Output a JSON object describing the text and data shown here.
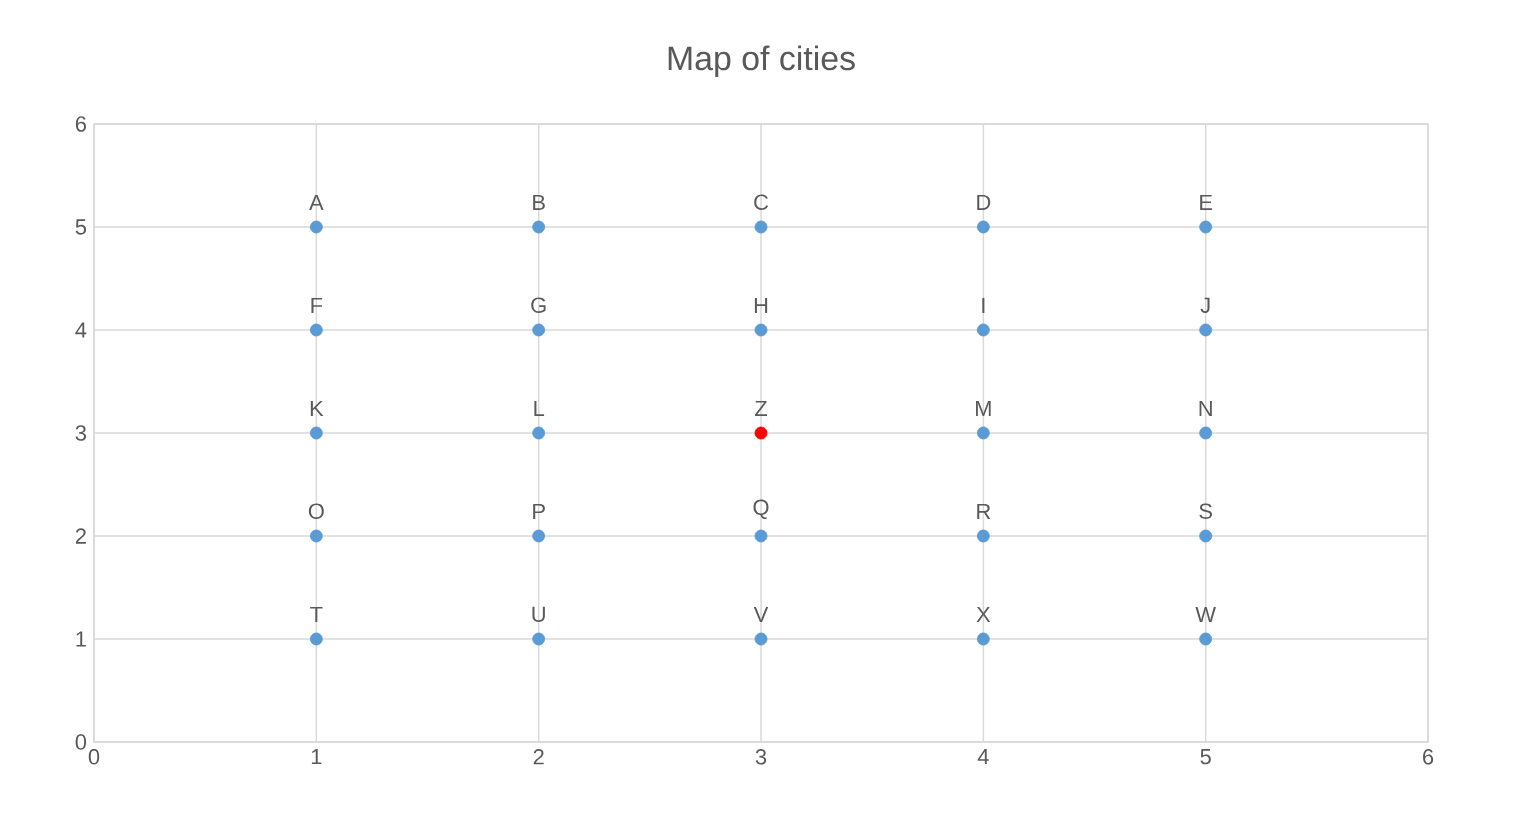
{
  "chart_data": {
    "type": "scatter",
    "title": "Map of cities",
    "series": [
      {
        "color": "#5b9bd5",
        "x": [
          1,
          2,
          3,
          4,
          5,
          1,
          2,
          3,
          4,
          5,
          1,
          2,
          4,
          5,
          1,
          2,
          3,
          4,
          5,
          1,
          2,
          3,
          4,
          5
        ],
        "values": [
          5,
          5,
          5,
          5,
          5,
          4,
          4,
          4,
          4,
          4,
          3,
          3,
          3,
          3,
          2,
          2,
          2,
          2,
          2,
          1,
          1,
          1,
          1,
          1
        ]
      },
      {
        "color": "#ff0000",
        "x": [
          3
        ],
        "values": [
          3
        ]
      }
    ],
    "annotations": [
      {
        "text": "A",
        "x": 1,
        "y": 5
      },
      {
        "text": "B",
        "x": 2,
        "y": 5
      },
      {
        "text": "C",
        "x": 3,
        "y": 5
      },
      {
        "text": "D",
        "x": 4,
        "y": 5
      },
      {
        "text": "E",
        "x": 5,
        "y": 5
      },
      {
        "text": "F",
        "x": 1,
        "y": 4
      },
      {
        "text": "G",
        "x": 2,
        "y": 4
      },
      {
        "text": "H",
        "x": 3,
        "y": 4
      },
      {
        "text": "I",
        "x": 4,
        "y": 4
      },
      {
        "text": "J",
        "x": 5,
        "y": 4
      },
      {
        "text": "K",
        "x": 1,
        "y": 3
      },
      {
        "text": "L",
        "x": 2,
        "y": 3
      },
      {
        "text": "Z",
        "x": 3,
        "y": 3
      },
      {
        "text": "M",
        "x": 4,
        "y": 3
      },
      {
        "text": "N",
        "x": 5,
        "y": 3
      },
      {
        "text": "O",
        "x": 1,
        "y": 2
      },
      {
        "text": "P",
        "x": 2,
        "y": 2
      },
      {
        "text": "Q",
        "x": 3,
        "y": 2
      },
      {
        "text": "R",
        "x": 4,
        "y": 2
      },
      {
        "text": "S",
        "x": 5,
        "y": 2
      },
      {
        "text": "T",
        "x": 1,
        "y": 1
      },
      {
        "text": "U",
        "x": 2,
        "y": 1
      },
      {
        "text": "V",
        "x": 3,
        "y": 1
      },
      {
        "text": "X",
        "x": 4,
        "y": 1
      },
      {
        "text": "W",
        "x": 5,
        "y": 1
      }
    ],
    "xlim": [
      0,
      6
    ],
    "ylim": [
      0,
      6
    ],
    "xticks": [
      0,
      1,
      2,
      3,
      4,
      5,
      6
    ],
    "yticks": [
      0,
      1,
      2,
      3,
      4,
      5,
      6
    ],
    "grid": true
  }
}
